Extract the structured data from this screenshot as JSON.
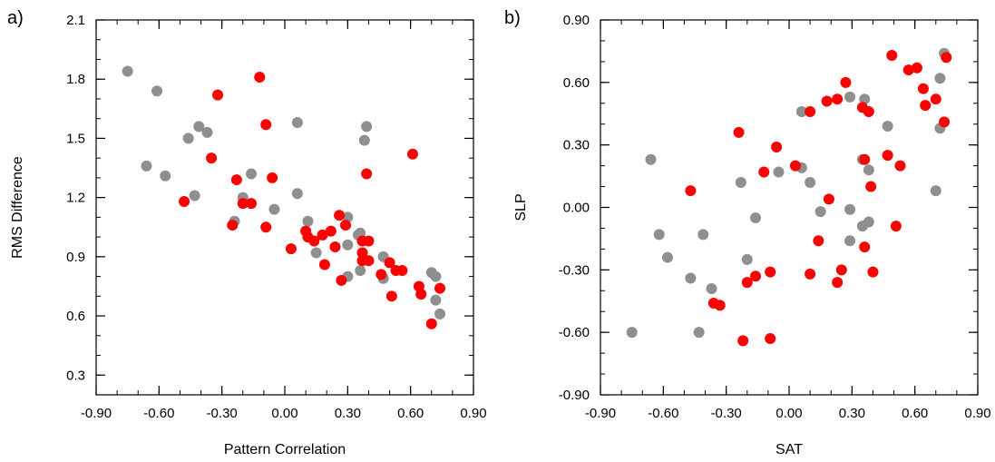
{
  "chart_data": [
    {
      "type": "scatter",
      "panel_label": "a)",
      "xlabel": "Pattern Correlation",
      "ylabel": "RMS Difference",
      "xlim": [
        -0.9,
        0.9
      ],
      "ylim": [
        0.2,
        2.1
      ],
      "x_ticks": [
        "-0.90",
        "-0.60",
        "-0.30",
        "0.00",
        "0.30",
        "0.60",
        "0.90"
      ],
      "y_ticks": [
        "0.3",
        "0.6",
        "0.9",
        "1.2",
        "1.5",
        "1.8",
        "2.1"
      ],
      "x_tick_values": [
        -0.9,
        -0.6,
        -0.3,
        0.0,
        0.3,
        0.6,
        0.9
      ],
      "y_tick_values": [
        0.3,
        0.6,
        0.9,
        1.2,
        1.5,
        1.8,
        2.1
      ],
      "series": [
        {
          "name": "gray",
          "color": "#8f8f8f",
          "points": [
            [
              -0.75,
              1.84
            ],
            [
              -0.61,
              1.74
            ],
            [
              -0.66,
              1.36
            ],
            [
              -0.57,
              1.31
            ],
            [
              -0.46,
              1.5
            ],
            [
              -0.41,
              1.56
            ],
            [
              -0.37,
              1.53
            ],
            [
              -0.43,
              1.21
            ],
            [
              -0.16,
              1.32
            ],
            [
              -0.2,
              1.2
            ],
            [
              -0.24,
              1.08
            ],
            [
              -0.05,
              1.14
            ],
            [
              0.06,
              1.58
            ],
            [
              0.39,
              1.56
            ],
            [
              0.38,
              1.49
            ],
            [
              0.06,
              1.22
            ],
            [
              0.11,
              1.08
            ],
            [
              0.15,
              0.92
            ],
            [
              0.3,
              1.1
            ],
            [
              0.3,
              0.96
            ],
            [
              0.35,
              1.01
            ],
            [
              0.36,
              1.02
            ],
            [
              0.36,
              0.83
            ],
            [
              0.3,
              0.8
            ],
            [
              0.47,
              0.9
            ],
            [
              0.47,
              0.79
            ],
            [
              0.7,
              0.82
            ],
            [
              0.72,
              0.8
            ],
            [
              0.72,
              0.68
            ],
            [
              0.74,
              0.61
            ]
          ]
        },
        {
          "name": "red",
          "color": "#ff0000",
          "points": [
            [
              -0.12,
              1.81
            ],
            [
              -0.32,
              1.72
            ],
            [
              -0.09,
              1.57
            ],
            [
              -0.35,
              1.4
            ],
            [
              -0.06,
              1.3
            ],
            [
              -0.23,
              1.29
            ],
            [
              -0.48,
              1.18
            ],
            [
              -0.16,
              1.17
            ],
            [
              -0.2,
              1.17
            ],
            [
              -0.25,
              1.06
            ],
            [
              -0.09,
              1.05
            ],
            [
              0.39,
              1.32
            ],
            [
              0.61,
              1.42
            ],
            [
              0.03,
              0.94
            ],
            [
              0.11,
              1.0
            ],
            [
              0.1,
              1.03
            ],
            [
              0.14,
              0.98
            ],
            [
              0.18,
              1.01
            ],
            [
              0.22,
              1.03
            ],
            [
              0.24,
              0.95
            ],
            [
              0.26,
              1.11
            ],
            [
              0.29,
              1.06
            ],
            [
              0.37,
              0.98
            ],
            [
              0.37,
              0.92
            ],
            [
              0.4,
              0.98
            ],
            [
              0.4,
              0.88
            ],
            [
              0.37,
              0.88
            ],
            [
              0.19,
              0.86
            ],
            [
              0.27,
              0.78
            ],
            [
              0.46,
              0.81
            ],
            [
              0.5,
              0.87
            ],
            [
              0.53,
              0.83
            ],
            [
              0.56,
              0.83
            ],
            [
              0.51,
              0.7
            ],
            [
              0.64,
              0.75
            ],
            [
              0.65,
              0.71
            ],
            [
              0.74,
              0.74
            ],
            [
              0.7,
              0.56
            ]
          ]
        }
      ]
    },
    {
      "type": "scatter",
      "panel_label": "b)",
      "xlabel": "SAT",
      "ylabel": "SLP",
      "xlim": [
        -0.9,
        0.9
      ],
      "ylim": [
        -0.9,
        0.9
      ],
      "x_ticks": [
        "-0.90",
        "-0.60",
        "-0.30",
        "0.00",
        "0.30",
        "0.60",
        "0.90"
      ],
      "y_ticks": [
        "-0.90",
        "-0.60",
        "-0.30",
        "0.00",
        "0.30",
        "0.60",
        "0.90"
      ],
      "x_tick_values": [
        -0.9,
        -0.6,
        -0.3,
        0.0,
        0.3,
        0.6,
        0.9
      ],
      "y_tick_values": [
        -0.9,
        -0.6,
        -0.3,
        0.0,
        0.3,
        0.6,
        0.9
      ],
      "series": [
        {
          "name": "gray",
          "color": "#8f8f8f",
          "points": [
            [
              -0.75,
              -0.6
            ],
            [
              -0.66,
              0.23
            ],
            [
              -0.62,
              -0.13
            ],
            [
              -0.58,
              -0.24
            ],
            [
              -0.47,
              -0.34
            ],
            [
              -0.43,
              -0.6
            ],
            [
              -0.41,
              -0.13
            ],
            [
              -0.37,
              -0.39
            ],
            [
              -0.23,
              0.12
            ],
            [
              -0.2,
              -0.25
            ],
            [
              -0.16,
              -0.05
            ],
            [
              -0.05,
              0.17
            ],
            [
              0.06,
              0.46
            ],
            [
              0.06,
              0.19
            ],
            [
              0.1,
              0.12
            ],
            [
              0.15,
              -0.02
            ],
            [
              0.29,
              0.53
            ],
            [
              0.36,
              0.52
            ],
            [
              0.29,
              -0.01
            ],
            [
              0.29,
              -0.16
            ],
            [
              0.35,
              0.23
            ],
            [
              0.35,
              -0.09
            ],
            [
              0.38,
              -0.07
            ],
            [
              0.38,
              0.18
            ],
            [
              0.47,
              0.39
            ],
            [
              0.47,
              0.25
            ],
            [
              0.7,
              0.08
            ],
            [
              0.72,
              0.62
            ],
            [
              0.72,
              0.38
            ],
            [
              0.74,
              0.74
            ]
          ]
        },
        {
          "name": "red",
          "color": "#ff0000",
          "points": [
            [
              -0.24,
              0.36
            ],
            [
              -0.47,
              0.08
            ],
            [
              -0.36,
              -0.46
            ],
            [
              -0.33,
              -0.47
            ],
            [
              -0.22,
              -0.64
            ],
            [
              -0.2,
              -0.36
            ],
            [
              -0.16,
              -0.33
            ],
            [
              -0.12,
              0.17
            ],
            [
              -0.09,
              -0.31
            ],
            [
              -0.09,
              -0.63
            ],
            [
              -0.06,
              0.29
            ],
            [
              0.03,
              0.2
            ],
            [
              0.1,
              0.46
            ],
            [
              0.1,
              -0.32
            ],
            [
              0.14,
              -0.16
            ],
            [
              0.18,
              0.51
            ],
            [
              0.19,
              0.04
            ],
            [
              0.23,
              0.52
            ],
            [
              0.23,
              -0.36
            ],
            [
              0.25,
              -0.3
            ],
            [
              0.27,
              0.6
            ],
            [
              0.35,
              0.48
            ],
            [
              0.36,
              0.23
            ],
            [
              0.36,
              -0.19
            ],
            [
              0.38,
              0.46
            ],
            [
              0.39,
              0.1
            ],
            [
              0.4,
              -0.31
            ],
            [
              0.47,
              0.25
            ],
            [
              0.49,
              0.73
            ],
            [
              0.51,
              -0.09
            ],
            [
              0.53,
              0.2
            ],
            [
              0.57,
              0.66
            ],
            [
              0.61,
              0.67
            ],
            [
              0.64,
              0.57
            ],
            [
              0.65,
              0.49
            ],
            [
              0.7,
              0.52
            ],
            [
              0.74,
              0.41
            ],
            [
              0.75,
              0.72
            ]
          ]
        }
      ]
    }
  ]
}
